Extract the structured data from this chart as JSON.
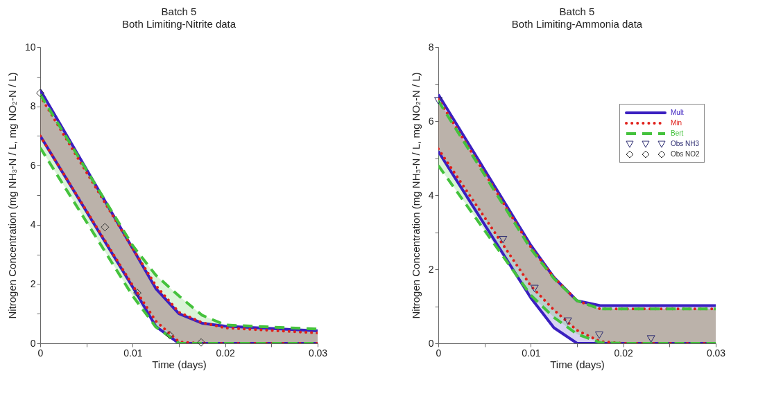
{
  "chart_data": [
    {
      "type": "line",
      "title": "Batch 5",
      "subtitle": "Both Limiting-Nitrite data",
      "xlabel": "Time (days)",
      "ylabel": "Nitrogen Concentration (mg NH₃-N / L, mg NO₂-N / L)",
      "xlim": [
        0,
        0.03
      ],
      "ylim": [
        0,
        10
      ],
      "xticks": [
        0,
        {
          "value": 0.005,
          "label": null
        },
        0.01,
        {
          "value": 0.015,
          "label": null
        },
        0.02,
        {
          "value": 0.025,
          "label": null
        },
        0.03
      ],
      "yticks": [
        0,
        {
          "value": 1,
          "label": null
        },
        2,
        {
          "value": 3,
          "label": null
        },
        4,
        {
          "value": 5,
          "label": null
        },
        6,
        {
          "value": 7,
          "label": null
        },
        8,
        {
          "value": 9,
          "label": null
        },
        10
      ],
      "grid": false,
      "legend": false,
      "series": [
        {
          "color": "#3a1fc0",
          "line_style": "solid",
          "x": [
            0,
            0.01,
            0.0125,
            0.015,
            0.0175,
            0.02,
            0.03
          ],
          "values": [
            8.55,
            3.2,
            1.85,
            1.0,
            0.68,
            0.58,
            0.42
          ],
          "lower": [
            7.0,
            1.9,
            0.57,
            0,
            0,
            0,
            0
          ],
          "upper": [
            8.55,
            3.2,
            1.85,
            1.0,
            0.68,
            0.58,
            0.42
          ]
        },
        {
          "color": "#3a1fc0",
          "line_style": "solid",
          "x": [
            0,
            0.01,
            0.0125,
            0.015,
            0.0175,
            0.02,
            0.03
          ],
          "values": [
            7.0,
            1.9,
            0.57,
            0,
            0,
            0,
            0
          ]
        },
        {
          "color": "#e0201a",
          "line_style": "dotted",
          "x": [
            0,
            0.01,
            0.0125,
            0.015,
            0.0175,
            0.02,
            0.03
          ],
          "values": [
            8.35,
            3.2,
            1.95,
            1.05,
            0.7,
            0.52,
            0.35
          ],
          "lower": [
            7.0,
            1.95,
            0.75,
            0.05,
            0,
            0,
            0
          ],
          "upper": [
            8.35,
            3.2,
            1.95,
            1.05,
            0.7,
            0.52,
            0.35
          ]
        },
        {
          "color": "#e0201a",
          "line_style": "dotted",
          "x": [
            0,
            0.01,
            0.0125,
            0.015,
            0.0175,
            0.02,
            0.03
          ],
          "values": [
            7.0,
            1.95,
            0.75,
            0.05,
            0,
            0,
            0
          ]
        },
        {
          "color": "#44c23c",
          "line_style": "dashed",
          "x": [
            0,
            0.01,
            0.0125,
            0.015,
            0.0175,
            0.02,
            0.03
          ],
          "values": [
            8.4,
            3.3,
            2.3,
            1.6,
            0.95,
            0.62,
            0.48
          ],
          "lower": [
            6.6,
            1.6,
            0.55,
            0,
            0,
            0,
            0
          ],
          "upper": [
            8.4,
            3.3,
            2.3,
            1.6,
            0.95,
            0.62,
            0.48
          ]
        },
        {
          "color": "#44c23c",
          "line_style": "dashed",
          "x": [
            0,
            0.01,
            0.0125,
            0.015,
            0.0175,
            0.02,
            0.03
          ],
          "values": [
            6.6,
            1.6,
            0.55,
            0,
            0,
            0,
            0
          ]
        },
        {
          "type": "scatter",
          "marker": "diamond",
          "color": "#333333",
          "x": [
            0,
            0.007,
            0.0105,
            0.014,
            0.0174
          ],
          "values": [
            8.45,
            3.92,
            1.7,
            0.28,
            0.03
          ]
        }
      ]
    },
    {
      "type": "line",
      "title": "Batch 5",
      "subtitle": "Both Limiting-Ammonia data",
      "xlabel": "Time (days)",
      "ylabel": "Nitrogen Concentration (mg NH₃-N / L, mg NO₂-N / L)",
      "xlim": [
        0,
        0.03
      ],
      "ylim": [
        0,
        8
      ],
      "xticks": [
        0,
        {
          "value": 0.005,
          "label": null
        },
        0.01,
        {
          "value": 0.015,
          "label": null
        },
        0.02,
        {
          "value": 0.025,
          "label": null
        },
        0.03
      ],
      "yticks": [
        0,
        {
          "value": 1,
          "label": null
        },
        2,
        {
          "value": 3,
          "label": null
        },
        4,
        {
          "value": 5,
          "label": null
        },
        6,
        {
          "value": 7,
          "label": null
        },
        8
      ],
      "grid": false,
      "legend": "top right",
      "series": [
        {
          "name": "Mult",
          "color": "#3a1fc0",
          "line_style": "solid",
          "x": [
            0,
            0.01,
            0.0125,
            0.015,
            0.0175,
            0.02,
            0.03
          ],
          "values": [
            6.72,
            2.65,
            1.78,
            1.15,
            1.02,
            1.02,
            1.02
          ],
          "lower": [
            5.18,
            1.23,
            0.42,
            0,
            0,
            0,
            0
          ],
          "upper": [
            6.72,
            2.65,
            1.78,
            1.15,
            1.02,
            1.02,
            1.02
          ]
        },
        {
          "color": "#3a1fc0",
          "line_style": "solid",
          "x": [
            0,
            0.01,
            0.0125,
            0.015,
            0.0175,
            0.02,
            0.03
          ],
          "values": [
            5.18,
            1.23,
            0.42,
            0,
            0,
            0,
            0
          ]
        },
        {
          "name": "Min",
          "color": "#e0201a",
          "line_style": "dotted",
          "x": [
            0,
            0.01,
            0.0125,
            0.015,
            0.0175,
            0.02,
            0.03
          ],
          "values": [
            6.6,
            2.6,
            1.78,
            1.15,
            0.93,
            0.93,
            0.93
          ],
          "lower": [
            5.25,
            1.55,
            0.9,
            0.35,
            0.05,
            0,
            0
          ],
          "upper": [
            6.6,
            2.6,
            1.78,
            1.15,
            0.93,
            0.93,
            0.93
          ]
        },
        {
          "color": "#e0201a",
          "line_style": "dotted",
          "x": [
            0,
            0.01,
            0.0125,
            0.015,
            0.0175,
            0.02,
            0.03
          ],
          "values": [
            5.25,
            1.55,
            0.9,
            0.35,
            0.05,
            0,
            0
          ]
        },
        {
          "name": "Bert",
          "color": "#44c23c",
          "line_style": "dashed",
          "x": [
            0,
            0.01,
            0.0125,
            0.015,
            0.0175,
            0.02,
            0.03
          ],
          "values": [
            6.55,
            2.55,
            1.75,
            1.15,
            0.93,
            0.93,
            0.93
          ],
          "lower": [
            4.8,
            1.3,
            0.7,
            0.25,
            0.02,
            0,
            0
          ],
          "upper": [
            6.55,
            2.55,
            1.75,
            1.15,
            0.93,
            0.93,
            0.93
          ]
        },
        {
          "color": "#44c23c",
          "line_style": "dashed",
          "x": [
            0,
            0.01,
            0.0125,
            0.015,
            0.0175,
            0.02,
            0.03
          ],
          "values": [
            4.8,
            1.3,
            0.7,
            0.25,
            0.02,
            0,
            0
          ]
        },
        {
          "name": "Obs NH3",
          "type": "scatter",
          "marker": "triangle",
          "color": "#2a2a70",
          "x": [
            0,
            0.007,
            0.0104,
            0.014,
            0.0174,
            0.023
          ],
          "values": [
            6.55,
            2.8,
            1.48,
            0.6,
            0.22,
            0.12
          ]
        },
        {
          "name": "Obs NO2",
          "type": "scatter",
          "marker": "diamond",
          "color": "#333333"
        }
      ]
    }
  ]
}
